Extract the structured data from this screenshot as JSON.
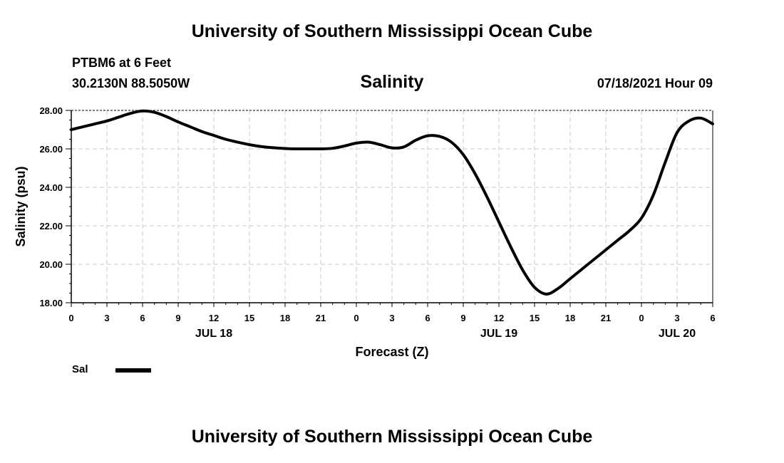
{
  "header": {
    "institution": "University of Southern Mississippi Ocean Cube",
    "station": "PTBM6 at 6 Feet",
    "coordinates": "30.2130N  88.5050W",
    "run_time": "07/18/2021 Hour 09"
  },
  "footer": {
    "institution": "University of Southern Mississippi Ocean Cube"
  },
  "legend": {
    "label": "Sal"
  },
  "chart_data": {
    "type": "line",
    "title": "Salinity",
    "xlabel": "Forecast (Z)",
    "ylabel": "Salinity (psu)",
    "xlim": [
      0,
      54
    ],
    "ylim": [
      18.0,
      28.0
    ],
    "grid": true,
    "x_ticks": [
      0,
      3,
      6,
      9,
      12,
      15,
      18,
      21,
      24,
      27,
      30,
      33,
      36,
      39,
      42,
      45,
      48,
      51,
      54
    ],
    "x_tick_labels": [
      "0",
      "3",
      "6",
      "9",
      "12",
      "15",
      "18",
      "21",
      "0",
      "3",
      "6",
      "9",
      "12",
      "15",
      "18",
      "21",
      "0",
      "3",
      "6"
    ],
    "y_ticks": [
      18.0,
      20.0,
      22.0,
      24.0,
      26.0,
      28.0
    ],
    "y_tick_labels": [
      "18.00",
      "20.00",
      "22.00",
      "24.00",
      "26.00",
      "28.00"
    ],
    "day_labels": [
      {
        "x": 12,
        "label": "JUL 18"
      },
      {
        "x": 36,
        "label": "JUL 19"
      },
      {
        "x": 51,
        "label": "JUL 20"
      }
    ],
    "series": [
      {
        "name": "Sal",
        "color": "#000000",
        "x": [
          0,
          1,
          2,
          3,
          4,
          5,
          6,
          7,
          8,
          9,
          10,
          11,
          12,
          13,
          14,
          15,
          16,
          17,
          18,
          19,
          20,
          21,
          22,
          23,
          24,
          25,
          26,
          27,
          28,
          29,
          30,
          31,
          32,
          33,
          34,
          35,
          36,
          37,
          38,
          39,
          40,
          41,
          42,
          43,
          44,
          45,
          46,
          47,
          48,
          49,
          50,
          51,
          52,
          53,
          54
        ],
        "values": [
          27.0,
          27.15,
          27.3,
          27.45,
          27.65,
          27.85,
          27.97,
          27.9,
          27.68,
          27.4,
          27.15,
          26.9,
          26.7,
          26.5,
          26.35,
          26.22,
          26.12,
          26.06,
          26.02,
          26.0,
          26.0,
          26.0,
          26.03,
          26.15,
          26.3,
          26.35,
          26.22,
          26.05,
          26.1,
          26.45,
          26.68,
          26.65,
          26.35,
          25.7,
          24.7,
          23.5,
          22.2,
          20.9,
          19.7,
          18.8,
          18.45,
          18.75,
          19.25,
          19.75,
          20.25,
          20.75,
          21.25,
          21.75,
          22.4,
          23.6,
          25.3,
          26.85,
          27.45,
          27.6,
          27.3
        ]
      }
    ]
  }
}
